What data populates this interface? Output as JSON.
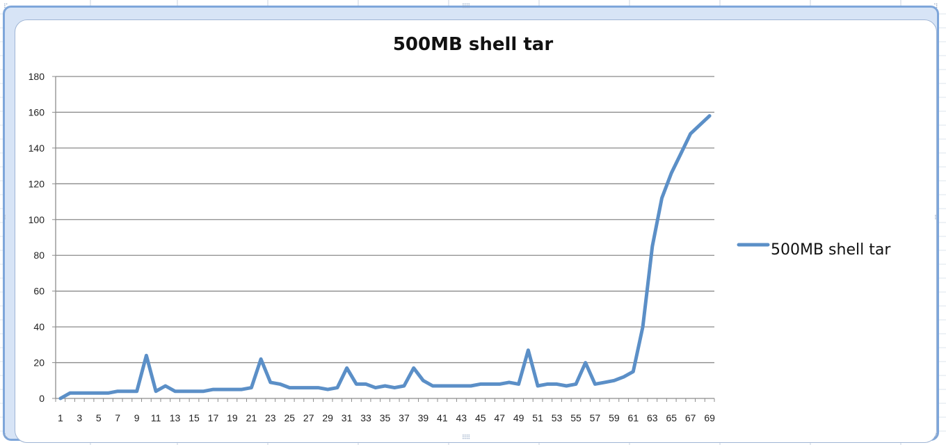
{
  "chart_data": {
    "type": "line",
    "title": "500MB shell tar",
    "xlabel": "",
    "ylabel": "",
    "ylim": [
      0,
      180
    ],
    "yticks": [
      0,
      20,
      40,
      60,
      80,
      100,
      120,
      140,
      160,
      180
    ],
    "x_tick_labels": [
      "1",
      "3",
      "5",
      "7",
      "9",
      "11",
      "13",
      "15",
      "17",
      "19",
      "21",
      "23",
      "25",
      "27",
      "29",
      "31",
      "33",
      "35",
      "37",
      "39",
      "41",
      "43",
      "45",
      "47",
      "49",
      "51",
      "53",
      "55",
      "57",
      "59",
      "61",
      "63",
      "65",
      "67",
      "69"
    ],
    "x": [
      1,
      2,
      3,
      4,
      5,
      6,
      7,
      8,
      9,
      10,
      11,
      12,
      13,
      14,
      15,
      16,
      17,
      18,
      19,
      20,
      21,
      22,
      23,
      24,
      25,
      26,
      27,
      28,
      29,
      30,
      31,
      32,
      33,
      34,
      35,
      36,
      37,
      38,
      39,
      40,
      41,
      42,
      43,
      44,
      45,
      46,
      47,
      48,
      49,
      50,
      51,
      52,
      53,
      54,
      55,
      56,
      57,
      58,
      59,
      60,
      61,
      62,
      63,
      64,
      65,
      66,
      67,
      68,
      69
    ],
    "series": [
      {
        "name": "500MB shell tar",
        "color": "#5b8fc7",
        "values": [
          0,
          3,
          3,
          3,
          3,
          3,
          4,
          4,
          4,
          24,
          4,
          7,
          4,
          4,
          4,
          4,
          5,
          5,
          5,
          5,
          6,
          22,
          9,
          8,
          6,
          6,
          6,
          6,
          5,
          6,
          17,
          8,
          8,
          6,
          7,
          6,
          7,
          17,
          10,
          7,
          7,
          7,
          7,
          7,
          8,
          8,
          8,
          9,
          8,
          27,
          7,
          8,
          8,
          7,
          8,
          20,
          8,
          9,
          10,
          12,
          15,
          40,
          85,
          112,
          126,
          137,
          148,
          153,
          158
        ]
      }
    ],
    "grid": true,
    "legend": "right"
  }
}
